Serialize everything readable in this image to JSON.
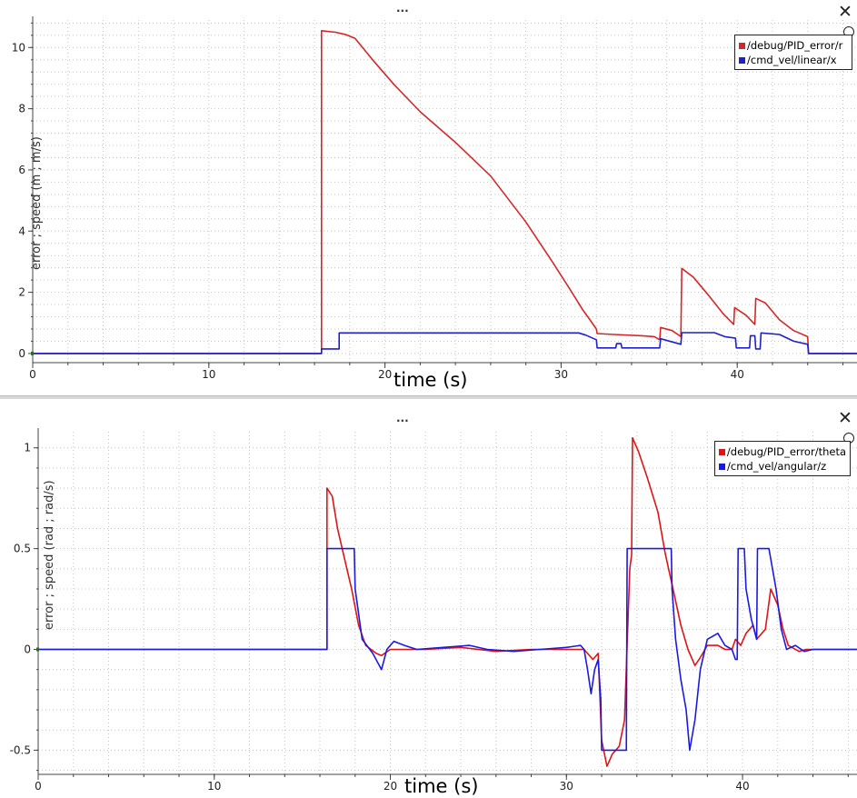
{
  "panels": [
    {
      "menu_dots": "...",
      "close_symbol": "✕",
      "legend": [
        "/debug/PID_error/r",
        "/cmd_vel/linear/x"
      ],
      "chart_data": {
        "type": "line",
        "xlabel": "time (s)",
        "ylabel": "error ; speed (m ; m/s)",
        "xlim": [
          0,
          46.8
        ],
        "ylim": [
          -0.3,
          10.9
        ],
        "xticks": [
          0,
          10,
          20,
          30,
          40
        ],
        "yticks": [
          0,
          2,
          4,
          6,
          8,
          10
        ],
        "grid": true,
        "legend_position": "top-right",
        "series": [
          {
            "name": "/debug/PID_error/r",
            "color": "#d62728",
            "points": [
              [
                0,
                0
              ],
              [
                16.4,
                0
              ],
              [
                16.4,
                10.55
              ],
              [
                17.2,
                10.5
              ],
              [
                17.8,
                10.42
              ],
              [
                18.3,
                10.3
              ],
              [
                19.3,
                9.6
              ],
              [
                20.5,
                8.8
              ],
              [
                22,
                7.9
              ],
              [
                24,
                6.9
              ],
              [
                26,
                5.8
              ],
              [
                28,
                4.3
              ],
              [
                29.5,
                3.0
              ],
              [
                30.5,
                2.1
              ],
              [
                31.2,
                1.45
              ],
              [
                31.7,
                1.05
              ],
              [
                32.0,
                0.8
              ],
              [
                32.05,
                0.65
              ],
              [
                33,
                0.62
              ],
              [
                34.6,
                0.58
              ],
              [
                35.3,
                0.55
              ],
              [
                35.6,
                0.45
              ],
              [
                35.65,
                0.85
              ],
              [
                36.3,
                0.75
              ],
              [
                36.8,
                0.55
              ],
              [
                36.85,
                2.78
              ],
              [
                37.5,
                2.5
              ],
              [
                38.3,
                1.95
              ],
              [
                39.2,
                1.3
              ],
              [
                39.8,
                0.95
              ],
              [
                39.85,
                1.5
              ],
              [
                40.5,
                1.25
              ],
              [
                41.0,
                0.95
              ],
              [
                41.05,
                1.8
              ],
              [
                41.6,
                1.65
              ],
              [
                42.4,
                1.1
              ],
              [
                43.2,
                0.75
              ],
              [
                44.0,
                0.55
              ],
              [
                44.05,
                0
              ],
              [
                46.8,
                0
              ]
            ]
          },
          {
            "name": "/cmd_vel/linear/x",
            "color": "#1f1fcf",
            "points": [
              [
                0,
                0
              ],
              [
                16.4,
                0
              ],
              [
                16.4,
                0.15
              ],
              [
                17.4,
                0.15
              ],
              [
                17.4,
                0.67
              ],
              [
                31.0,
                0.67
              ],
              [
                31.4,
                0.6
              ],
              [
                32.0,
                0.45
              ],
              [
                32.05,
                0.18
              ],
              [
                33.1,
                0.18
              ],
              [
                33.15,
                0.32
              ],
              [
                33.4,
                0.32
              ],
              [
                33.45,
                0.18
              ],
              [
                35.6,
                0.18
              ],
              [
                35.65,
                0.48
              ],
              [
                36.8,
                0.3
              ],
              [
                36.85,
                0.68
              ],
              [
                38.7,
                0.68
              ],
              [
                39.3,
                0.55
              ],
              [
                39.9,
                0.5
              ],
              [
                39.95,
                0.18
              ],
              [
                40.7,
                0.18
              ],
              [
                40.75,
                0.58
              ],
              [
                41.0,
                0.58
              ],
              [
                41.05,
                0.15
              ],
              [
                41.3,
                0.15
              ],
              [
                41.35,
                0.67
              ],
              [
                42.4,
                0.62
              ],
              [
                43.2,
                0.4
              ],
              [
                44.0,
                0.3
              ],
              [
                44.05,
                0
              ],
              [
                46.8,
                0
              ]
            ]
          }
        ]
      }
    },
    {
      "menu_dots": "...",
      "close_symbol": "✕",
      "legend": [
        "/debug/PID_error/theta",
        "/cmd_vel/angular/z"
      ],
      "chart_data": {
        "type": "line",
        "xlabel": "time (s)",
        "ylabel": "error ; speed (rad ; rad/s)",
        "xlim": [
          0,
          46.5
        ],
        "ylim": [
          -0.62,
          1.08
        ],
        "xticks": [
          0,
          10,
          20,
          30,
          40
        ],
        "yticks": [
          -0.5,
          0,
          0.5,
          1
        ],
        "grid": true,
        "legend_position": "top-right",
        "series": [
          {
            "name": "/debug/PID_error/theta",
            "color": "#e01414",
            "points": [
              [
                0,
                0
              ],
              [
                16.4,
                0
              ],
              [
                16.4,
                0.8
              ],
              [
                16.7,
                0.76
              ],
              [
                17.0,
                0.6
              ],
              [
                17.4,
                0.45
              ],
              [
                17.8,
                0.3
              ],
              [
                18.2,
                0.12
              ],
              [
                18.6,
                0.02
              ],
              [
                19.2,
                -0.02
              ],
              [
                19.5,
                -0.03
              ],
              [
                20,
                0
              ],
              [
                22,
                0.0
              ],
              [
                24,
                0.01
              ],
              [
                26,
                -0.01
              ],
              [
                28,
                0.0
              ],
              [
                30,
                0.0
              ],
              [
                31.0,
                0.0
              ],
              [
                31.5,
                -0.05
              ],
              [
                31.8,
                -0.02
              ],
              [
                32.0,
                -0.45
              ],
              [
                32.3,
                -0.58
              ],
              [
                32.6,
                -0.52
              ],
              [
                33.0,
                -0.48
              ],
              [
                33.3,
                -0.35
              ],
              [
                33.6,
                0.4
              ],
              [
                33.7,
                0.47
              ],
              [
                33.75,
                1.05
              ],
              [
                34.1,
                0.98
              ],
              [
                34.6,
                0.85
              ],
              [
                35.2,
                0.68
              ],
              [
                35.6,
                0.48
              ],
              [
                36.1,
                0.28
              ],
              [
                36.5,
                0.12
              ],
              [
                36.9,
                0.0
              ],
              [
                37.3,
                -0.08
              ],
              [
                37.6,
                -0.04
              ],
              [
                38,
                0.02
              ],
              [
                38.6,
                0.02
              ],
              [
                39,
                0.0
              ],
              [
                39.4,
                0.0
              ],
              [
                39.6,
                0.05
              ],
              [
                39.9,
                0.02
              ],
              [
                40.2,
                0.08
              ],
              [
                40.6,
                0.12
              ],
              [
                40.8,
                0.05
              ],
              [
                41.3,
                0.1
              ],
              [
                41.6,
                0.3
              ],
              [
                42.0,
                0.22
              ],
              [
                42.3,
                0.1
              ],
              [
                42.6,
                0.02
              ],
              [
                43.2,
                -0.01
              ],
              [
                43.6,
                0.0
              ],
              [
                44.0,
                0
              ],
              [
                46.5,
                0
              ]
            ]
          },
          {
            "name": "/cmd_vel/angular/z",
            "color": "#1a1ae0",
            "points": [
              [
                0,
                0
              ],
              [
                16.4,
                0
              ],
              [
                16.4,
                0.5
              ],
              [
                17.95,
                0.5
              ],
              [
                18.0,
                0.3
              ],
              [
                18.4,
                0.05
              ],
              [
                19.0,
                -0.02
              ],
              [
                19.5,
                -0.1
              ],
              [
                19.8,
                0.0
              ],
              [
                20.2,
                0.04
              ],
              [
                20.8,
                0.02
              ],
              [
                21.5,
                0.0
              ],
              [
                23.0,
                0.01
              ],
              [
                24.5,
                0.02
              ],
              [
                25.5,
                0.0
              ],
              [
                27.0,
                -0.01
              ],
              [
                28.5,
                0.0
              ],
              [
                30.0,
                0.01
              ],
              [
                30.8,
                0.02
              ],
              [
                31.0,
                0.0
              ],
              [
                31.2,
                -0.1
              ],
              [
                31.4,
                -0.22
              ],
              [
                31.6,
                -0.1
              ],
              [
                31.8,
                -0.05
              ],
              [
                31.95,
                -0.25
              ],
              [
                32.0,
                -0.5
              ],
              [
                33.4,
                -0.5
              ],
              [
                33.45,
                0.5
              ],
              [
                35.95,
                0.5
              ],
              [
                36.0,
                0.3
              ],
              [
                36.2,
                0.05
              ],
              [
                36.5,
                -0.15
              ],
              [
                36.8,
                -0.3
              ],
              [
                37.0,
                -0.5
              ],
              [
                37.3,
                -0.35
              ],
              [
                37.6,
                -0.1
              ],
              [
                38.0,
                0.05
              ],
              [
                38.6,
                0.08
              ],
              [
                39.0,
                0.02
              ],
              [
                39.4,
                0.0
              ],
              [
                39.6,
                -0.05
              ],
              [
                39.7,
                -0.05
              ],
              [
                39.75,
                0.5
              ],
              [
                40.1,
                0.5
              ],
              [
                40.2,
                0.3
              ],
              [
                40.5,
                0.15
              ],
              [
                40.8,
                0.05
              ],
              [
                40.85,
                0.5
              ],
              [
                41.5,
                0.5
              ],
              [
                41.9,
                0.3
              ],
              [
                42.2,
                0.1
              ],
              [
                42.5,
                0.0
              ],
              [
                43.0,
                0.02
              ],
              [
                43.5,
                -0.01
              ],
              [
                44.0,
                0
              ],
              [
                46.5,
                0
              ]
            ]
          }
        ]
      }
    }
  ]
}
